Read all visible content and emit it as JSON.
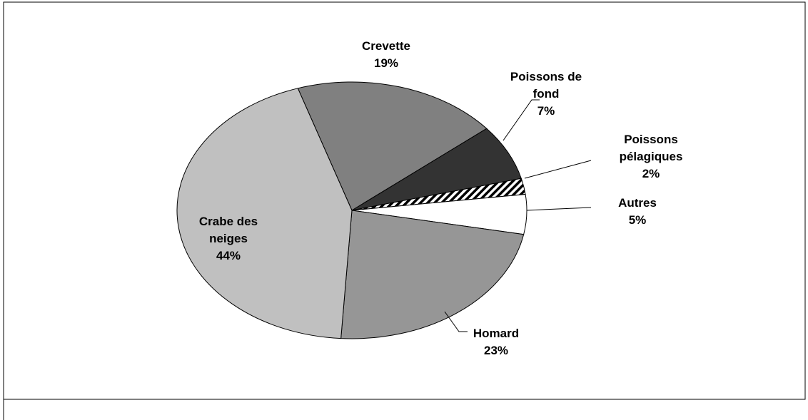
{
  "chart_data": {
    "type": "pie",
    "categories": [
      "Crevette",
      "Poissons de fond",
      "Poissons pélagiques",
      "Autres",
      "Homard",
      "Crabe des neiges"
    ],
    "values": [
      19,
      7,
      2,
      5,
      23,
      44
    ],
    "value_labels": [
      "19%",
      "7%",
      "2%",
      "5%",
      "23%",
      "44%"
    ],
    "colors": [
      "#808080",
      "#333333",
      "hatch",
      "#ffffff",
      "#969696",
      "#c0c0c0"
    ]
  }
}
